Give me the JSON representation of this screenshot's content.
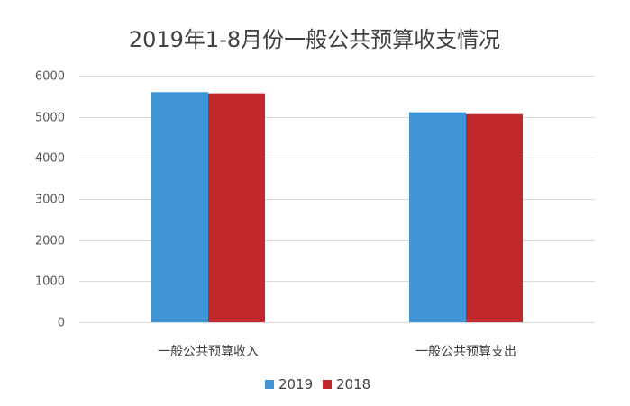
{
  "chart_data": {
    "type": "bar",
    "title": "2019年1-8月份一般公共预算收支情况",
    "categories": [
      "一般公共预算收入",
      "一般公共预算支出"
    ],
    "series": [
      {
        "name": "2019",
        "color": "#3f95d6",
        "values": [
          5600,
          5110
        ]
      },
      {
        "name": "2018",
        "color": "#c0282a",
        "values": [
          5570,
          5065
        ]
      }
    ],
    "ylim": [
      0,
      6000
    ],
    "yticks": [
      0,
      1000,
      2000,
      3000,
      4000,
      5000,
      6000
    ],
    "grid": true,
    "legend": "bottom"
  }
}
